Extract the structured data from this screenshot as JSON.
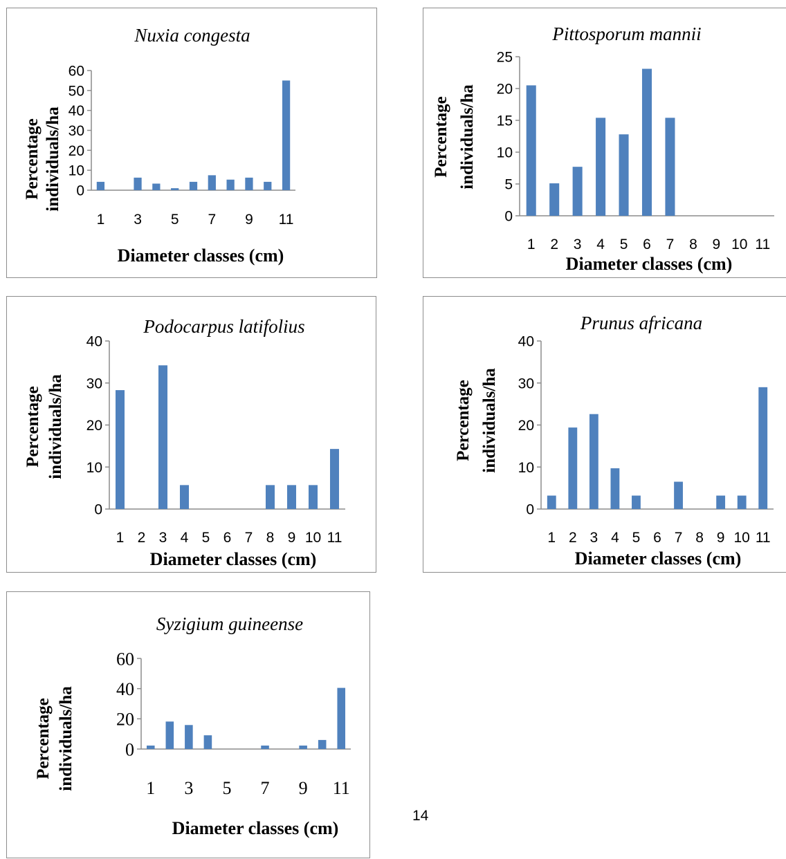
{
  "page_number": "14",
  "chart_data": [
    {
      "type": "bar",
      "title": "Nuxia congesta",
      "xlabel": "Diameter classes (cm)",
      "ylabel_lines": [
        "Percentage",
        "individuals/ha"
      ],
      "categories": [
        "1",
        "2",
        "3",
        "4",
        "5",
        "6",
        "7",
        "8",
        "9",
        "10",
        "11"
      ],
      "category_tick_labels": [
        "1",
        "",
        "3",
        "",
        "5",
        "",
        "7",
        "",
        "9",
        "",
        "11"
      ],
      "values": [
        4.2,
        0,
        6.3,
        3.3,
        1.0,
        4.2,
        7.5,
        5.3,
        6.3,
        4.2,
        55.0
      ],
      "ylim": [
        0,
        60
      ],
      "yticks": [
        "0",
        "10",
        "20",
        "30",
        "40",
        "50",
        "60"
      ],
      "grid": false,
      "legend": "none",
      "bar_color": "#4f81bd"
    },
    {
      "type": "bar",
      "title": "Pittosporum mannii",
      "xlabel": "Diameter classes (cm)",
      "ylabel_lines": [
        "Percentage",
        "individuals/ha"
      ],
      "categories": [
        "1",
        "2",
        "3",
        "4",
        "5",
        "6",
        "7",
        "8",
        "9",
        "10",
        "11"
      ],
      "category_tick_labels": [
        "1",
        "2",
        "3",
        "4",
        "5",
        "6",
        "7",
        "8",
        "9",
        "10",
        "11"
      ],
      "values": [
        20.5,
        5.1,
        7.7,
        15.4,
        12.8,
        23.1,
        15.4,
        0,
        0,
        0,
        0
      ],
      "ylim": [
        0,
        25
      ],
      "yticks": [
        "0",
        "5",
        "10",
        "15",
        "20",
        "25"
      ],
      "grid": false,
      "legend": "none",
      "bar_color": "#4f81bd"
    },
    {
      "type": "bar",
      "title": "Podocarpus latifolius",
      "xlabel": "Diameter classes (cm)",
      "ylabel_lines": [
        "Percentage",
        "individuals/ha"
      ],
      "categories": [
        "1",
        "2",
        "3",
        "4",
        "5",
        "6",
        "7",
        "8",
        "9",
        "10",
        "11"
      ],
      "category_tick_labels": [
        "1",
        "2",
        "3",
        "4",
        "5",
        "6",
        "7",
        "8",
        "9",
        "10",
        "11"
      ],
      "values": [
        28.3,
        0,
        34.2,
        5.7,
        0,
        0,
        0,
        5.7,
        5.7,
        5.7,
        14.3
      ],
      "ylim": [
        0,
        40
      ],
      "yticks": [
        "0",
        "10",
        "20",
        "30",
        "40"
      ],
      "grid": false,
      "legend": "none",
      "bar_color": "#4f81bd"
    },
    {
      "type": "bar",
      "title": "Prunus africana",
      "xlabel": "Diameter classes (cm)",
      "ylabel_lines": [
        "Percentage",
        "individuals/ha"
      ],
      "categories": [
        "1",
        "2",
        "3",
        "4",
        "5",
        "6",
        "7",
        "8",
        "9",
        "10",
        "11"
      ],
      "category_tick_labels": [
        "1",
        "2",
        "3",
        "4",
        "5",
        "6",
        "7",
        "8",
        "9",
        "10",
        "11"
      ],
      "values": [
        3.2,
        19.4,
        22.6,
        9.7,
        3.2,
        0,
        6.5,
        0,
        3.2,
        3.2,
        29.0
      ],
      "ylim": [
        0,
        40
      ],
      "yticks": [
        "0",
        "10",
        "20",
        "30",
        "40"
      ],
      "grid": false,
      "legend": "none",
      "bar_color": "#4f81bd"
    },
    {
      "type": "bar",
      "title": "Syzigium guineense",
      "xlabel": "Diameter classes (cm)",
      "ylabel_lines": [
        "Percentage",
        "individuals/ha"
      ],
      "categories": [
        "1",
        "2",
        "3",
        "4",
        "5",
        "6",
        "7",
        "8",
        "9",
        "10",
        "11"
      ],
      "category_tick_labels": [
        "1",
        "",
        "3",
        "",
        "5",
        "",
        "7",
        "",
        "9",
        "",
        "11"
      ],
      "values": [
        2.3,
        18.2,
        15.9,
        9.1,
        0,
        0,
        2.3,
        0,
        2.3,
        6.0,
        40.5
      ],
      "ylim": [
        0,
        60
      ],
      "yticks": [
        "0",
        "20",
        "40",
        "60"
      ],
      "grid": false,
      "legend": "none",
      "bar_color": "#4f81bd"
    }
  ]
}
